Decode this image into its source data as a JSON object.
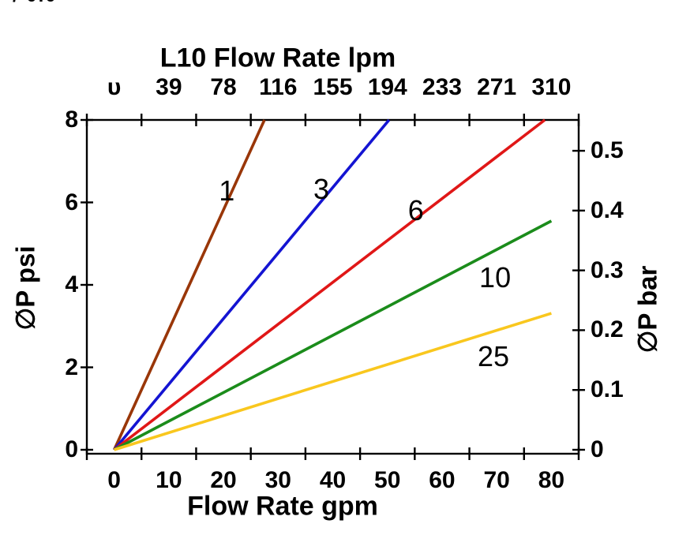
{
  "figure": {
    "clipped_corner_text": "/ 0.0"
  },
  "chart_data": {
    "type": "line",
    "title_top": "L10  Flow Rate lpm",
    "xlabel_bottom": "Flow Rate gpm",
    "ylabel_left": "∅P psi",
    "ylabel_right": "∅P bar",
    "grid": false,
    "plot_border": true,
    "legend": "none (labels inline next to lines)",
    "x_range": [
      -5,
      85
    ],
    "x_tick_step": 10,
    "ticks_between_labels": true,
    "x_axis_bottom": {
      "unit": "gpm",
      "values": [
        0,
        10,
        20,
        30,
        40,
        50,
        60,
        70,
        80
      ],
      "labels": [
        "0",
        "10",
        "20",
        "30",
        "40",
        "50",
        "60",
        "70",
        "80"
      ]
    },
    "x_axis_top": {
      "unit": "lpm",
      "labels": [
        "υ",
        "39",
        "78",
        "116",
        "155",
        "194",
        "233",
        "271",
        "310"
      ],
      "gpm_equivalents": [
        0,
        10,
        20,
        30,
        40,
        50,
        60,
        70,
        80
      ]
    },
    "y_axis_left": {
      "unit": "psi",
      "max": 8,
      "values": [
        0,
        2,
        4,
        6,
        8
      ],
      "labels": [
        "0",
        "2",
        "4",
        "6",
        "8"
      ]
    },
    "y_axis_right": {
      "unit": "bar",
      "psi_per_unit": 14.5038,
      "values": [
        0,
        0.1,
        0.2,
        0.3,
        0.4,
        0.5
      ],
      "labels": [
        "0",
        "0.1",
        "0.2",
        "0.3",
        "0.4",
        "0.5"
      ]
    },
    "series": [
      {
        "name": "1",
        "color": "#993608",
        "points": [
          [
            0,
            0
          ],
          [
            27.5,
            8
          ]
        ],
        "slope_psi_per_gpm": 0.291,
        "label_at": [
          20.6,
          6.28
        ]
      },
      {
        "name": "3",
        "color": "#1414D2",
        "points": [
          [
            0,
            0
          ],
          [
            50.3,
            8
          ]
        ],
        "slope_psi_per_gpm": 0.159,
        "label_at": [
          37.9,
          6.32
        ]
      },
      {
        "name": "6",
        "color": "#E01717",
        "points": [
          [
            0,
            0
          ],
          [
            78.8,
            8
          ]
        ],
        "slope_psi_per_gpm": 0.102,
        "label_at": [
          55.2,
          5.8
        ]
      },
      {
        "name": "10",
        "color": "#1B8C1B",
        "points": [
          [
            0,
            0
          ],
          [
            80,
            5.55
          ]
        ],
        "slope_psi_per_gpm": 0.069,
        "label_at": [
          69.7,
          4.17
        ]
      },
      {
        "name": "25",
        "color": "#F9C71E",
        "points": [
          [
            0,
            0
          ],
          [
            80,
            3.31
          ]
        ],
        "slope_psi_per_gpm": 0.041,
        "label_at": [
          69.4,
          2.26
        ]
      }
    ]
  }
}
